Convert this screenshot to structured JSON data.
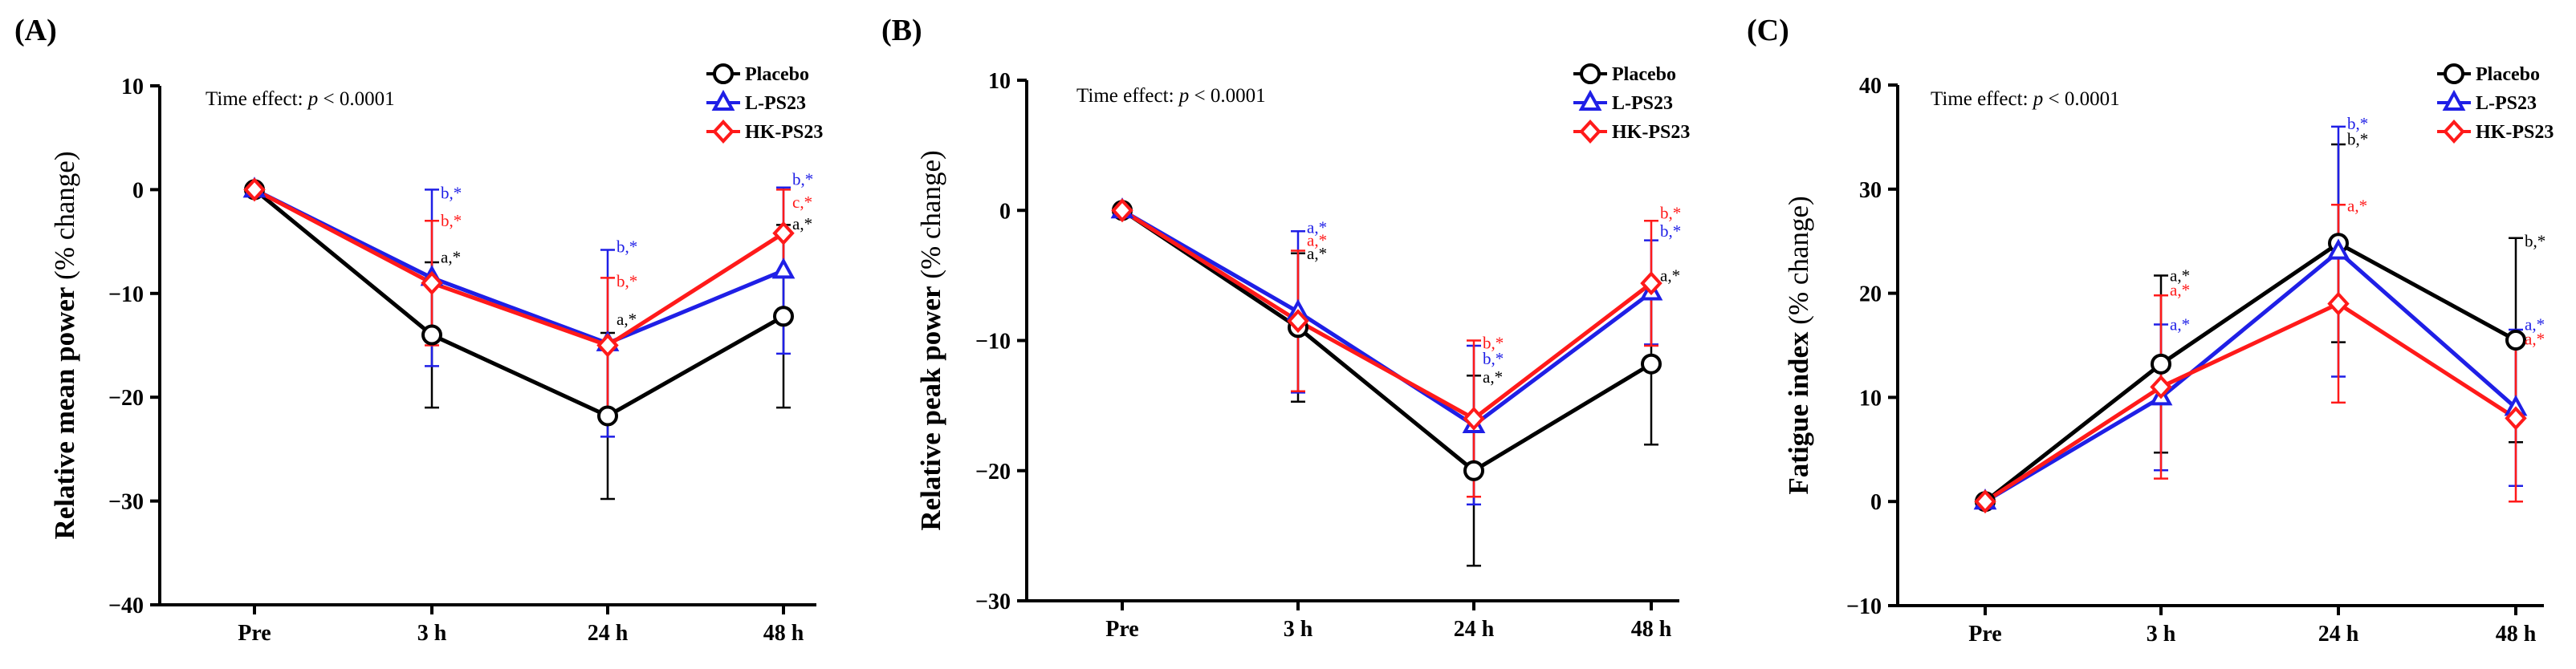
{
  "chart_data": [
    {
      "type": "line",
      "panel_label": "(A)",
      "ylabel_bold": "Relative mean power",
      "ylabel_regular": " (% change)",
      "time_effect": {
        "prefix": "Time effect: ",
        "italic": "p",
        "suffix": " < 0.0001"
      },
      "categories": [
        "Pre",
        "3 h",
        "24 h",
        "48 h"
      ],
      "ylim": [
        -40,
        10
      ],
      "yticks": [
        10,
        0,
        -10,
        -20,
        -30,
        -40
      ],
      "legend_placement": "top-right",
      "series": [
        {
          "name": "Placebo",
          "color": "#000000",
          "marker": "circle",
          "values": [
            0,
            -14,
            -21.8,
            -12.2
          ],
          "sd": [
            0,
            7,
            8,
            8.8
          ]
        },
        {
          "name": "L-PS23",
          "color": "#1f1fe6",
          "marker": "triangle",
          "values": [
            0,
            -8.5,
            -14.8,
            -7.8
          ],
          "sd": [
            0,
            8.5,
            9,
            8
          ]
        },
        {
          "name": "HK-PS23",
          "color": "#ff1a1a",
          "marker": "diamond",
          "values": [
            0,
            -9,
            -15,
            -4.2
          ],
          "sd": [
            0,
            6,
            6.5,
            4.2
          ]
        }
      ],
      "annotations": [
        {
          "category": "3 h",
          "y": -0.3,
          "text": "b,*",
          "color": "#1f1fe6"
        },
        {
          "category": "3 h",
          "y": -3.0,
          "text": "b,*",
          "color": "#ff1a1a"
        },
        {
          "category": "3 h",
          "y": -6.5,
          "text": "a,*",
          "color": "#000000"
        },
        {
          "category": "24 h",
          "y": -5.5,
          "text": "b,*",
          "color": "#1f1fe6"
        },
        {
          "category": "24 h",
          "y": -8.8,
          "text": "b,*",
          "color": "#ff1a1a"
        },
        {
          "category": "24 h",
          "y": -12.5,
          "text": "a,*",
          "color": "#000000"
        },
        {
          "category": "48 h",
          "y": 1.0,
          "text": "b,*",
          "color": "#1f1fe6"
        },
        {
          "category": "48 h",
          "y": -1.2,
          "text": "c,*",
          "color": "#ff1a1a"
        },
        {
          "category": "48 h",
          "y": -3.3,
          "text": "a,*",
          "color": "#000000"
        }
      ]
    },
    {
      "type": "line",
      "panel_label": "(B)",
      "ylabel_bold": "Relative peak power",
      "ylabel_regular": " (% change)",
      "time_effect": {
        "prefix": "Time effect: ",
        "italic": "p",
        "suffix": " < 0.0001"
      },
      "categories": [
        "Pre",
        "3 h",
        "24 h",
        "48 h"
      ],
      "ylim": [
        -30,
        10
      ],
      "yticks": [
        10,
        0,
        -10,
        -20,
        -30
      ],
      "legend_placement": "top-right",
      "series": [
        {
          "name": "Placebo",
          "color": "#000000",
          "marker": "circle",
          "values": [
            0,
            -9,
            -20,
            -11.8
          ],
          "sd": [
            0,
            5.7,
            7.3,
            6.2
          ]
        },
        {
          "name": "L-PS23",
          "color": "#1f1fe6",
          "marker": "triangle",
          "values": [
            0,
            -7.8,
            -16.5,
            -6.3
          ],
          "sd": [
            0,
            6.2,
            6.1,
            4
          ]
        },
        {
          "name": "HK-PS23",
          "color": "#ff1a1a",
          "marker": "diamond",
          "values": [
            0,
            -8.5,
            -16,
            -5.6
          ],
          "sd": [
            0,
            5.4,
            6,
            4.8
          ]
        }
      ],
      "annotations": [
        {
          "category": "3 h",
          "y": -1.3,
          "text": "a,*",
          "color": "#1f1fe6"
        },
        {
          "category": "3 h",
          "y": -2.3,
          "text": "a,*",
          "color": "#ff1a1a"
        },
        {
          "category": "3 h",
          "y": -3.3,
          "text": "a,*",
          "color": "#000000"
        },
        {
          "category": "24 h",
          "y": -10.2,
          "text": "b,*",
          "color": "#ff1a1a"
        },
        {
          "category": "24 h",
          "y": -11.4,
          "text": "b,*",
          "color": "#1f1fe6"
        },
        {
          "category": "24 h",
          "y": -12.8,
          "text": "a,*",
          "color": "#000000"
        },
        {
          "category": "48 h",
          "y": -0.2,
          "text": "b,*",
          "color": "#ff1a1a"
        },
        {
          "category": "48 h",
          "y": -1.6,
          "text": "b,*",
          "color": "#1f1fe6"
        },
        {
          "category": "48 h",
          "y": -5.0,
          "text": "a,*",
          "color": "#000000"
        }
      ]
    },
    {
      "type": "line",
      "panel_label": "(C)",
      "ylabel_bold": "Fatigue index",
      "ylabel_regular": " (% change)",
      "time_effect": {
        "prefix": "Time effect: ",
        "italic": "p",
        "suffix": " < 0.0001"
      },
      "categories": [
        "Pre",
        "3 h",
        "24 h",
        "48 h"
      ],
      "ylim": [
        -10,
        40
      ],
      "yticks": [
        40,
        30,
        20,
        10,
        0,
        -10
      ],
      "legend_placement": "top-right",
      "series": [
        {
          "name": "Placebo",
          "color": "#000000",
          "marker": "circle",
          "values": [
            0,
            13.2,
            24.8,
            15.5
          ],
          "sd": [
            0,
            8.5,
            9.5,
            9.8
          ]
        },
        {
          "name": "L-PS23",
          "color": "#1f1fe6",
          "marker": "triangle",
          "values": [
            0,
            10,
            24,
            9
          ],
          "sd": [
            0,
            7,
            12,
            7.5
          ]
        },
        {
          "name": "HK-PS23",
          "color": "#ff1a1a",
          "marker": "diamond",
          "values": [
            0,
            11,
            19,
            8
          ],
          "sd": [
            0,
            8.8,
            9.5,
            8
          ]
        }
      ],
      "annotations": [
        {
          "category": "3 h",
          "y": 21.7,
          "text": "a,*",
          "color": "#000000"
        },
        {
          "category": "3 h",
          "y": 20.3,
          "text": "a,*",
          "color": "#ff1a1a"
        },
        {
          "category": "3 h",
          "y": 17.0,
          "text": "a,*",
          "color": "#1f1fe6"
        },
        {
          "category": "24 h",
          "y": 36.3,
          "text": "b,*",
          "color": "#1f1fe6"
        },
        {
          "category": "24 h",
          "y": 34.8,
          "text": "b,*",
          "color": "#000000"
        },
        {
          "category": "24 h",
          "y": 28.4,
          "text": "a,*",
          "color": "#ff1a1a"
        },
        {
          "category": "48 h",
          "y": 25.0,
          "text": "b,*",
          "color": "#000000"
        },
        {
          "category": "48 h",
          "y": 17.0,
          "text": "a,*",
          "color": "#1f1fe6"
        },
        {
          "category": "48 h",
          "y": 15.6,
          "text": "a,*",
          "color": "#ff1a1a"
        }
      ]
    }
  ]
}
